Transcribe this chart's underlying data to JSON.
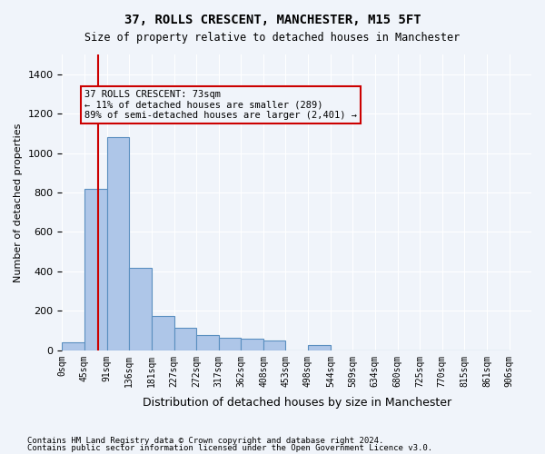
{
  "title": "37, ROLLS CRESCENT, MANCHESTER, M15 5FT",
  "subtitle": "Size of property relative to detached houses in Manchester",
  "xlabel": "Distribution of detached houses by size in Manchester",
  "ylabel": "Number of detached properties",
  "footer_line1": "Contains HM Land Registry data © Crown copyright and database right 2024.",
  "footer_line2": "Contains public sector information licensed under the Open Government Licence v3.0.",
  "bin_labels": [
    "0sqm",
    "45sqm",
    "91sqm",
    "136sqm",
    "181sqm",
    "227sqm",
    "272sqm",
    "317sqm",
    "362sqm",
    "408sqm",
    "453sqm",
    "498sqm",
    "544sqm",
    "589sqm",
    "634sqm",
    "680sqm",
    "725sqm",
    "770sqm",
    "815sqm",
    "861sqm",
    "906sqm"
  ],
  "bar_values": [
    40,
    820,
    1080,
    420,
    175,
    115,
    75,
    65,
    60,
    50,
    0,
    25,
    0,
    0,
    0,
    0,
    0,
    0,
    0,
    0
  ],
  "bar_color": "#aec6e8",
  "bar_edge_color": "#5a8fc0",
  "vline_x": 73,
  "vline_color": "#cc0000",
  "ylim": [
    0,
    1500
  ],
  "yticks": [
    0,
    200,
    400,
    600,
    800,
    1000,
    1200,
    1400
  ],
  "annotation_text": "37 ROLLS CRESCENT: 73sqm\n← 11% of detached houses are smaller (289)\n89% of semi-detached houses are larger (2,401) →",
  "annotation_box_color": "#cc0000",
  "background_color": "#f0f4fa",
  "grid_color": "#ffffff"
}
